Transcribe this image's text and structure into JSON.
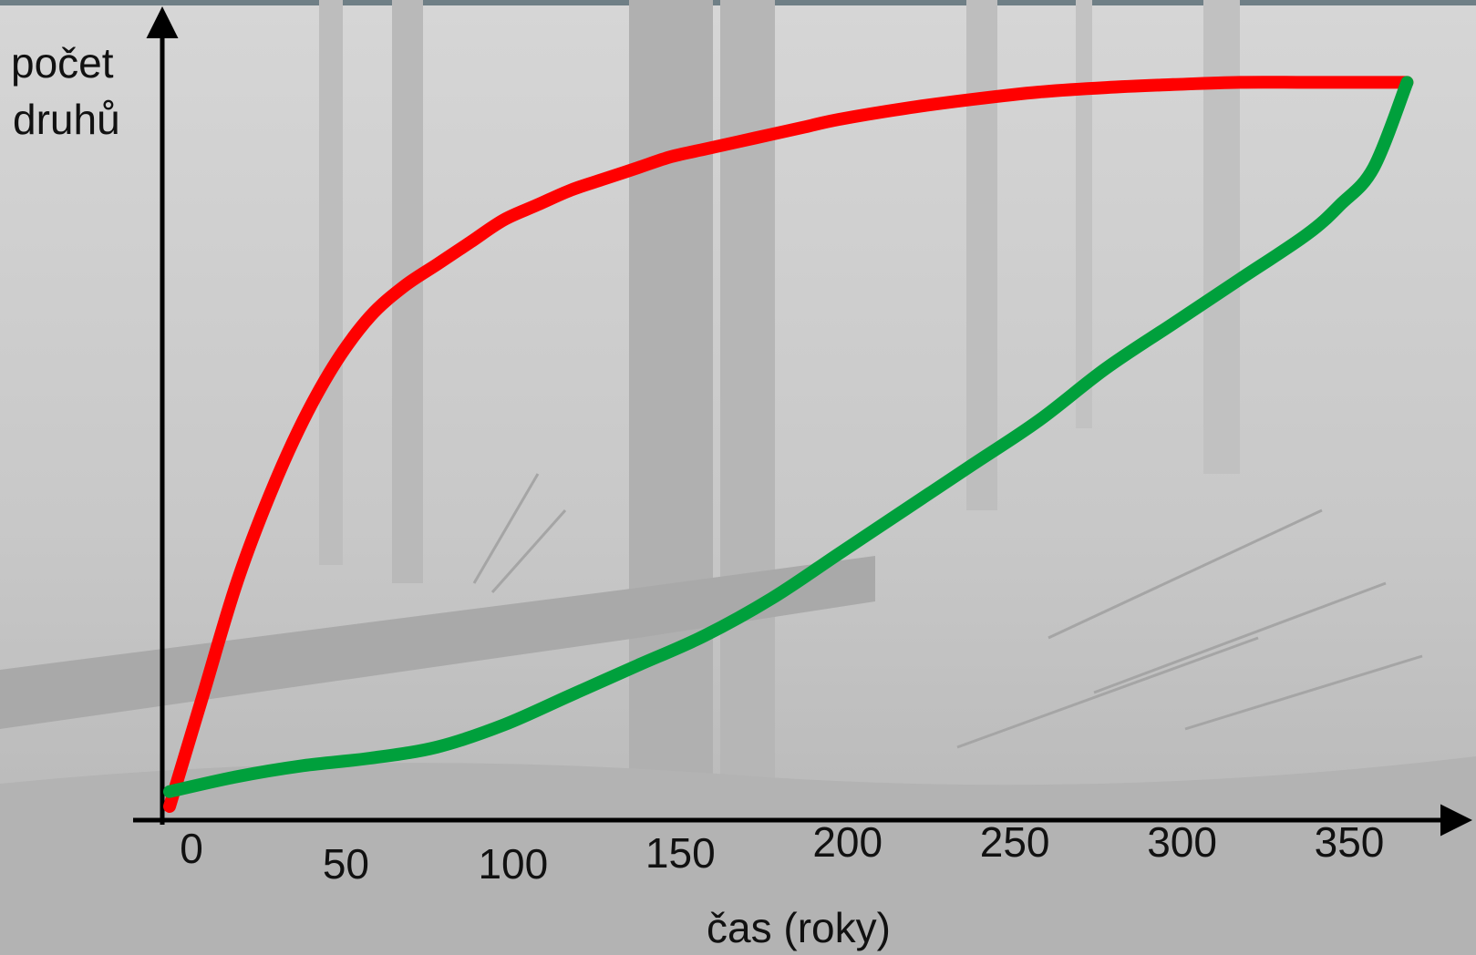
{
  "chart_data": {
    "type": "line",
    "title": "",
    "xlabel": "čas (roky)",
    "ylabel": [
      "počet",
      "druhů"
    ],
    "x_ticks": [
      0,
      50,
      100,
      150,
      200,
      250,
      300,
      350
    ],
    "x_tick_labels": [
      "0",
      "50",
      "100",
      "150",
      "200",
      "250",
      "300",
      "350"
    ],
    "xlim": [
      0,
      370
    ],
    "ylim": [
      0,
      1
    ],
    "grid": false,
    "legend": "none",
    "y_tick_labels": "none",
    "series": [
      {
        "color": "#ff0000",
        "x": [
          0,
          10,
          20,
          30,
          40,
          50,
          60,
          70,
          80,
          90,
          100,
          110,
          120,
          130,
          140,
          150,
          160,
          170,
          180,
          190,
          200,
          220,
          240,
          260,
          280,
          300,
          320,
          340,
          360,
          370
        ],
        "y": [
          0.0,
          0.15,
          0.3,
          0.42,
          0.52,
          0.6,
          0.66,
          0.7,
          0.73,
          0.76,
          0.79,
          0.81,
          0.83,
          0.845,
          0.86,
          0.875,
          0.885,
          0.895,
          0.905,
          0.915,
          0.925,
          0.94,
          0.952,
          0.962,
          0.968,
          0.972,
          0.975,
          0.975,
          0.975,
          0.975
        ]
      },
      {
        "color": "#00a03c",
        "x": [
          0,
          20,
          40,
          60,
          80,
          100,
          120,
          140,
          160,
          180,
          200,
          220,
          240,
          260,
          280,
          300,
          320,
          340,
          350,
          360,
          370
        ],
        "y": [
          0.02,
          0.04,
          0.055,
          0.065,
          0.08,
          0.11,
          0.15,
          0.19,
          0.23,
          0.28,
          0.34,
          0.4,
          0.46,
          0.52,
          0.59,
          0.65,
          0.71,
          0.77,
          0.81,
          0.86,
          0.975
        ]
      }
    ]
  },
  "colors": {
    "axis": "#000000",
    "background_photo_tint": "#c9c9c9",
    "top_strip": "#6f7f86"
  }
}
